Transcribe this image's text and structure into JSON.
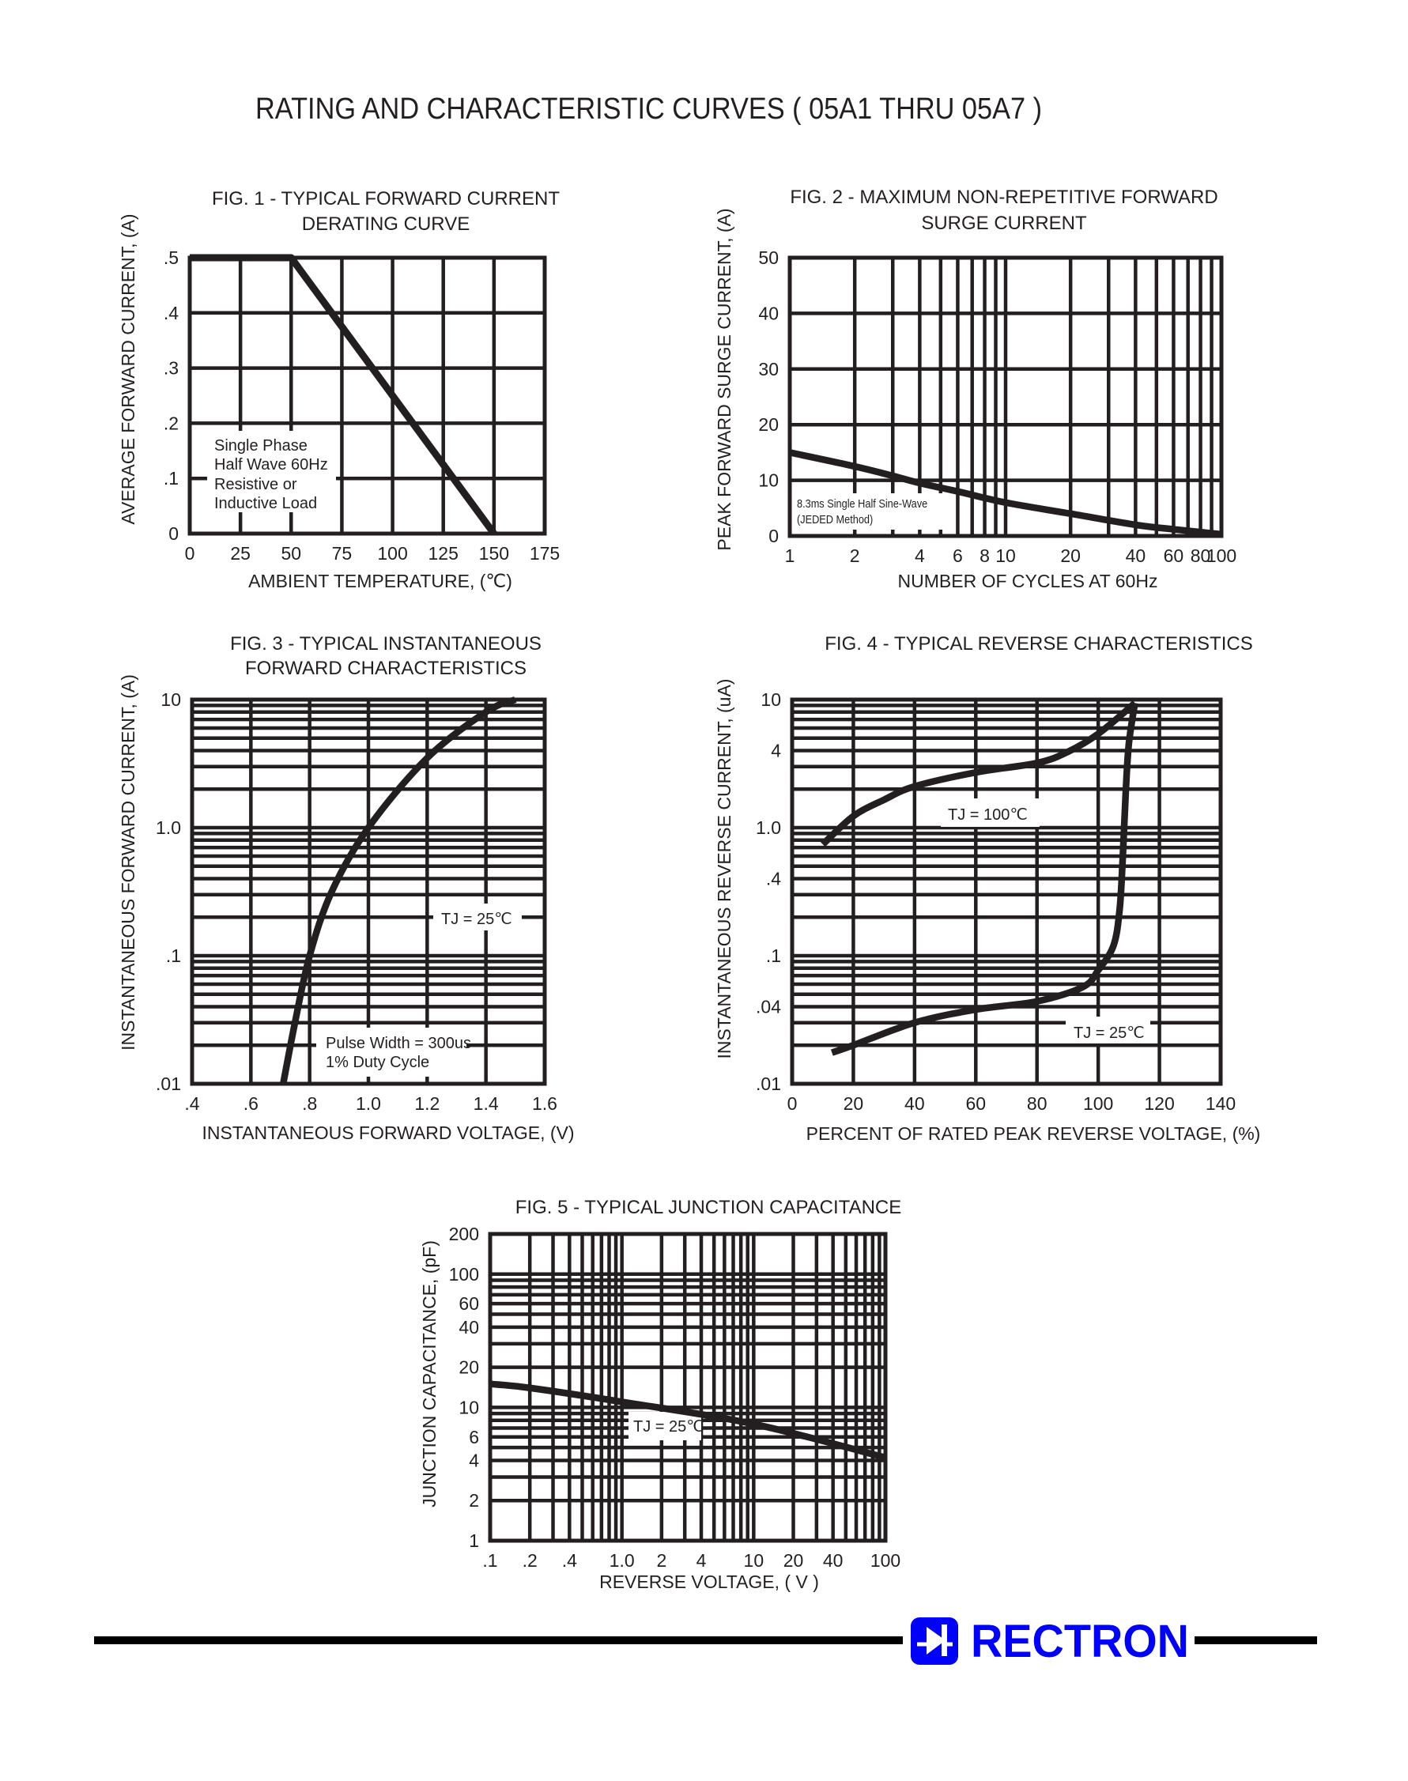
{
  "page": {
    "title": "RATING AND CHARACTERISTIC CURVES ( 05A1 THRU 05A7 )"
  },
  "brand": {
    "name": "RECTRON",
    "color": "#0000FF",
    "icon": "diode-logo-icon"
  },
  "chart_data": [
    {
      "type": "line",
      "title_lines": [
        "FIG. 1 - TYPICAL FORWARD CURRENT",
        "DERATING CURVE"
      ],
      "xlabel": "AMBIENT TEMPERATURE, (℃)",
      "ylabel": "AVERAGE FORWARD CURRENT, (A)",
      "x_scale": "linear",
      "y_scale": "linear",
      "xlim": [
        0,
        175
      ],
      "ylim": [
        0,
        0.5
      ],
      "grid": true,
      "xticks": [
        0,
        25,
        50,
        75,
        100,
        125,
        150,
        175
      ],
      "xtick_labels": [
        "0",
        "25",
        "50",
        "75",
        "100",
        "125",
        "150",
        "175"
      ],
      "yticks": [
        0,
        0.1,
        0.2,
        0.3,
        0.4,
        0.5
      ],
      "ytick_labels": [
        "0",
        ".1",
        ".2",
        ".3",
        ".4",
        ".5"
      ],
      "series": [
        {
          "x": [
            0,
            50,
            150
          ],
          "y": [
            0.5,
            0.5,
            0
          ]
        }
      ],
      "notes": [
        [
          "Single Phase",
          "Half Wave 60Hz",
          "Resistive or",
          "Inductive Load"
        ]
      ]
    },
    {
      "type": "line",
      "title_lines": [
        "FIG. 2 - MAXIMUM NON-REPETITIVE FORWARD",
        "SURGE CURRENT"
      ],
      "xlabel": "NUMBER OF CYCLES AT 60Hz",
      "ylabel": "PEAK FORWARD SURGE CURRENT, (A)",
      "x_scale": "log",
      "y_scale": "linear",
      "xlim": [
        1,
        100
      ],
      "ylim": [
        0,
        50
      ],
      "grid": true,
      "xticks": [
        1,
        2,
        4,
        6,
        8,
        10,
        20,
        40,
        60,
        80,
        100
      ],
      "xtick_labels": [
        "1",
        "2",
        "4",
        "6",
        "8",
        "10",
        "20",
        "40",
        "60",
        "80",
        "100"
      ],
      "yticks": [
        0,
        10,
        20,
        30,
        40,
        50
      ],
      "ytick_labels": [
        "0",
        "10",
        "20",
        "30",
        "40",
        "50"
      ],
      "series": [
        {
          "x": [
            1,
            2,
            3,
            4,
            6,
            10,
            20,
            40,
            60,
            100
          ],
          "y": [
            15,
            12.5,
            10.8,
            9.5,
            8,
            6,
            4,
            2,
            1.2,
            0.3
          ]
        }
      ],
      "notes": [
        [
          "8.3ms Single Half Sine-Wave",
          "(JEDED Method)"
        ]
      ]
    },
    {
      "type": "line",
      "title_lines": [
        "FIG. 3 - TYPICAL INSTANTANEOUS",
        "FORWARD CHARACTERISTICS"
      ],
      "xlabel": "INSTANTANEOUS FORWARD VOLTAGE, (V)",
      "ylabel": "INSTANTANEOUS FORWARD CURRENT, (A)",
      "x_scale": "linear",
      "y_scale": "log",
      "xlim": [
        0.4,
        1.6
      ],
      "ylim": [
        0.01,
        10
      ],
      "grid": true,
      "xticks": [
        0.4,
        0.6,
        0.8,
        1.0,
        1.2,
        1.4,
        1.6
      ],
      "xtick_labels": [
        ".4",
        ".6",
        ".8",
        "1.0",
        "1.2",
        "1.4",
        "1.6"
      ],
      "yticks": [
        0.01,
        0.1,
        1,
        10
      ],
      "ytick_labels": [
        ".01",
        ".1",
        "1.0",
        "10"
      ],
      "series": [
        {
          "label": "TJ = 25℃",
          "x": [
            0.71,
            0.75,
            0.8,
            0.875,
            1.0,
            1.2,
            1.4,
            1.5
          ],
          "y": [
            0.01,
            0.03,
            0.1,
            0.316,
            1.0,
            3.5,
            8,
            10
          ]
        }
      ],
      "notes": [
        [
          "Pulse Width = 300us",
          "1% Duty Cycle"
        ]
      ]
    },
    {
      "type": "line",
      "title_lines": [
        "FIG. 4 - TYPICAL REVERSE CHARACTERISTICS"
      ],
      "xlabel": "PERCENT OF RATED PEAK REVERSE VOLTAGE, (%)",
      "ylabel": "INSTANTANEOUS REVERSE CURRENT, (uA)",
      "x_scale": "linear",
      "y_scale": "log",
      "xlim": [
        0,
        140
      ],
      "ylim": [
        0.01,
        10
      ],
      "grid": true,
      "xticks": [
        0,
        20,
        40,
        60,
        80,
        100,
        120,
        140
      ],
      "xtick_labels": [
        "0",
        "20",
        "40",
        "60",
        "80",
        "100",
        "120",
        "140"
      ],
      "yticks": [
        0.01,
        0.04,
        0.1,
        0.4,
        1,
        4,
        10
      ],
      "ytick_labels": [
        ".01",
        ".04",
        ".1",
        ".4",
        "1.0",
        "4",
        "10"
      ],
      "series": [
        {
          "label": "TJ = 100℃",
          "x": [
            10,
            20,
            30,
            40,
            60,
            80,
            90,
            100,
            112
          ],
          "y": [
            0.74,
            1.23,
            1.65,
            2.1,
            2.7,
            3.2,
            3.9,
            5.4,
            9.4
          ]
        },
        {
          "label": "TJ = 25℃",
          "x": [
            13,
            20,
            40,
            60,
            80,
            95,
            100,
            105,
            107,
            108,
            109,
            110,
            112
          ],
          "y": [
            0.0175,
            0.02,
            0.03,
            0.038,
            0.044,
            0.057,
            0.077,
            0.12,
            0.23,
            0.57,
            1.9,
            4.5,
            9.4
          ]
        }
      ],
      "notes": []
    },
    {
      "type": "line",
      "title_lines": [
        "FIG. 5 - TYPICAL JUNCTION CAPACITANCE"
      ],
      "xlabel": "REVERSE VOLTAGE, ( V )",
      "ylabel": "JUNCTION CAPACITANCE, (pF)",
      "x_scale": "log",
      "y_scale": "log",
      "xlim": [
        0.1,
        100
      ],
      "ylim": [
        1,
        200
      ],
      "grid": true,
      "xticks": [
        0.1,
        0.2,
        0.4,
        1,
        2,
        4,
        10,
        20,
        40,
        100
      ],
      "xtick_labels": [
        ".1",
        ".2",
        ".4",
        "1.0",
        "2",
        "4",
        "10",
        "20",
        "40",
        "100"
      ],
      "yticks": [
        1,
        2,
        4,
        6,
        10,
        20,
        40,
        60,
        100,
        200
      ],
      "ytick_labels": [
        "1",
        "2",
        "4",
        "6",
        "10",
        "20",
        "40",
        "60",
        "100",
        "200"
      ],
      "series": [
        {
          "label": "TJ = 25℃",
          "x": [
            0.1,
            0.2,
            1,
            10,
            100
          ],
          "y": [
            15,
            14,
            11,
            7.5,
            4.2
          ]
        }
      ],
      "notes": []
    }
  ]
}
